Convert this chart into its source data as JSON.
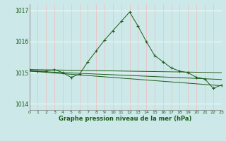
{
  "xlabel": "Graphe pression niveau de la mer (hPa)",
  "background_color": "#cce8e8",
  "grid_color_h": "#ffffff",
  "grid_color_v": "#ffcccc",
  "line_color": "#1a5c1a",
  "xlim": [
    0,
    23
  ],
  "ylim": [
    1013.8,
    1017.2
  ],
  "yticks": [
    1014,
    1015,
    1016,
    1017
  ],
  "xticks": [
    0,
    1,
    2,
    3,
    4,
    5,
    6,
    7,
    8,
    9,
    10,
    11,
    12,
    13,
    14,
    15,
    16,
    17,
    18,
    19,
    20,
    21,
    22,
    23
  ],
  "main_x": [
    0,
    1,
    2,
    3,
    4,
    5,
    6,
    7,
    8,
    9,
    10,
    11,
    12,
    13,
    14,
    15,
    16,
    17,
    18,
    19,
    20,
    21,
    22,
    23
  ],
  "main_y": [
    1015.1,
    1015.05,
    1015.05,
    1015.1,
    1015.0,
    1014.85,
    1014.95,
    1015.35,
    1015.7,
    1016.05,
    1016.35,
    1016.65,
    1016.95,
    1016.5,
    1016.0,
    1015.55,
    1015.35,
    1015.15,
    1015.05,
    1015.0,
    1014.85,
    1014.8,
    1014.5,
    1014.6
  ],
  "line1_x": [
    0,
    23
  ],
  "line1_y": [
    1015.1,
    1015.0
  ],
  "line2_x": [
    0,
    23
  ],
  "line2_y": [
    1015.05,
    1014.78
  ],
  "line3_x": [
    0,
    23
  ],
  "line3_y": [
    1015.05,
    1014.58
  ]
}
